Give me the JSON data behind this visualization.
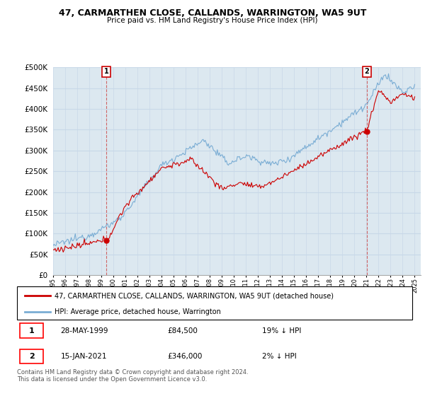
{
  "title": "47, CARMARTHEN CLOSE, CALLANDS, WARRINGTON, WA5 9UT",
  "subtitle": "Price paid vs. HM Land Registry's House Price Index (HPI)",
  "legend_label_red": "47, CARMARTHEN CLOSE, CALLANDS, WARRINGTON, WA5 9UT (detached house)",
  "legend_label_blue": "HPI: Average price, detached house, Warrington",
  "annotation1_date": "28-MAY-1999",
  "annotation1_price": "£84,500",
  "annotation1_hpi": "19% ↓ HPI",
  "annotation2_date": "15-JAN-2021",
  "annotation2_price": "£346,000",
  "annotation2_hpi": "2% ↓ HPI",
  "footer": "Contains HM Land Registry data © Crown copyright and database right 2024.\nThis data is licensed under the Open Government Licence v3.0.",
  "ylim": [
    0,
    500000
  ],
  "yticks": [
    0,
    50000,
    100000,
    150000,
    200000,
    250000,
    300000,
    350000,
    400000,
    450000,
    500000
  ],
  "red_color": "#cc0000",
  "blue_color": "#7aadd4",
  "sale1_x": 1999.41,
  "sale1_y": 84500,
  "sale2_x": 2021.04,
  "sale2_y": 346000,
  "xlim_left": 1995.0,
  "xlim_right": 2025.5,
  "grid_color": "#c8d8e8",
  "plot_bg_color": "#dce8f0"
}
